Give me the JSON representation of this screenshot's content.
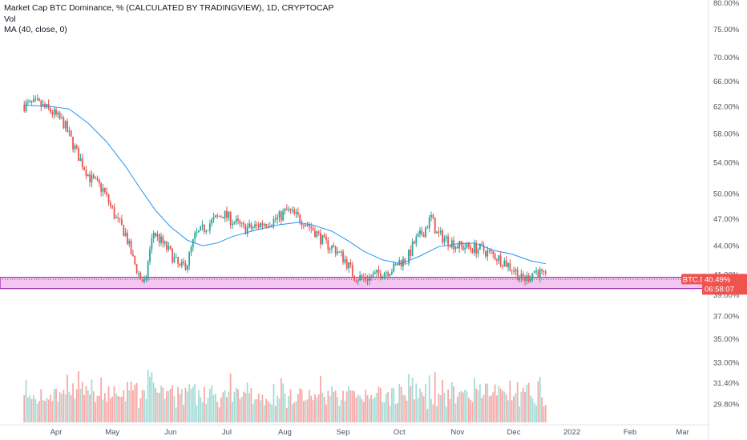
{
  "legend": {
    "title": "Market Cap BTC Dominance, % (CALCULATED BY TRADINGVIEW), 1D, CRYPTOCAP",
    "vol_label": "Vol",
    "ma_label": "MA (40, close, 0)"
  },
  "symbol_tag": "BTC.D",
  "last_price": "40.49%",
  "countdown": "06:58:07",
  "colors": {
    "up": "#26a69a",
    "down": "#ef5350",
    "ma": "#2196f3",
    "zone_fill": "#f3c6f0",
    "zone_border": "#9c27b0",
    "price_tag": "#ef5350",
    "volume_up": "#a6dcd6",
    "volume_down": "#f7a9a7"
  },
  "chart_data": {
    "type": "candlestick",
    "y_scale": "log",
    "price_axis_ticks": [
      "80.00%",
      "75.00%",
      "70.00%",
      "66.00%",
      "62.00%",
      "58.00%",
      "54.00%",
      "50.00%",
      "47.00%",
      "44.00%",
      "41.00%",
      "39.00%",
      "37.00%",
      "35.00%",
      "33.00%",
      "31.40%",
      "29.80%"
    ],
    "time_axis_ticks": [
      "Apr",
      "May",
      "Jun",
      "Jul",
      "Aug",
      "Sep",
      "Oct",
      "Nov",
      "Dec",
      "2022",
      "Feb",
      "Mar"
    ],
    "price_points": [
      [
        "2021-03-15",
        62.2
      ],
      [
        "2021-03-22",
        62.4
      ],
      [
        "2021-03-29",
        61.3
      ],
      [
        "2021-04-05",
        59.5
      ],
      [
        "2021-04-12",
        55.3
      ],
      [
        "2021-04-19",
        52.0
      ],
      [
        "2021-04-26",
        50.5
      ],
      [
        "2021-05-03",
        47.0
      ],
      [
        "2021-05-08",
        45.3
      ],
      [
        "2021-05-12",
        42.5
      ],
      [
        "2021-05-16",
        40.6
      ],
      [
        "2021-05-19",
        40.0
      ],
      [
        "2021-05-20",
        42.5
      ],
      [
        "2021-05-23",
        45.5
      ],
      [
        "2021-05-26",
        44.7
      ],
      [
        "2021-06-01",
        43.2
      ],
      [
        "2021-06-06",
        41.6
      ],
      [
        "2021-06-10",
        42.2
      ],
      [
        "2021-06-14",
        45.0
      ],
      [
        "2021-06-22",
        46.5
      ],
      [
        "2021-06-29",
        47.6
      ],
      [
        "2021-07-04",
        46.8
      ],
      [
        "2021-07-10",
        45.9
      ],
      [
        "2021-07-15",
        46.0
      ],
      [
        "2021-07-20",
        46.5
      ],
      [
        "2021-07-28",
        47.0
      ],
      [
        "2021-08-02",
        48.0
      ],
      [
        "2021-08-07",
        47.3
      ],
      [
        "2021-08-12",
        46.6
      ],
      [
        "2021-08-17",
        45.6
      ],
      [
        "2021-08-22",
        44.3
      ],
      [
        "2021-08-28",
        43.6
      ],
      [
        "2021-09-02",
        42.5
      ],
      [
        "2021-09-07",
        40.8
      ],
      [
        "2021-09-12",
        40.6
      ],
      [
        "2021-09-17",
        40.8
      ],
      [
        "2021-09-22",
        41.2
      ],
      [
        "2021-09-28",
        41.6
      ],
      [
        "2021-10-01",
        42.3
      ],
      [
        "2021-10-05",
        42.5
      ],
      [
        "2021-10-09",
        44.3
      ],
      [
        "2021-10-14",
        45.6
      ],
      [
        "2021-10-18",
        47.2
      ],
      [
        "2021-10-21",
        45.3
      ],
      [
        "2021-10-27",
        44.6
      ],
      [
        "2021-11-01",
        44.0
      ],
      [
        "2021-11-08",
        43.8
      ],
      [
        "2021-11-14",
        43.6
      ],
      [
        "2021-11-20",
        43.0
      ],
      [
        "2021-11-26",
        42.3
      ],
      [
        "2021-12-02",
        41.3
      ],
      [
        "2021-12-05",
        40.5
      ],
      [
        "2021-12-08",
        40.6
      ],
      [
        "2021-12-12",
        41.4
      ],
      [
        "2021-12-15",
        41.1
      ],
      [
        "2021-12-18",
        40.49
      ]
    ],
    "ma_points": [
      [
        "2021-03-15",
        62.2
      ],
      [
        "2021-03-29",
        62.0
      ],
      [
        "2021-04-08",
        61.6
      ],
      [
        "2021-04-18",
        59.5
      ],
      [
        "2021-04-28",
        56.8
      ],
      [
        "2021-05-08",
        53.5
      ],
      [
        "2021-05-16",
        50.6
      ],
      [
        "2021-05-24",
        48.0
      ],
      [
        "2021-06-01",
        46.1
      ],
      [
        "2021-06-10",
        44.6
      ],
      [
        "2021-06-18",
        44.0
      ],
      [
        "2021-06-26",
        44.3
      ],
      [
        "2021-07-04",
        45.0
      ],
      [
        "2021-07-16",
        45.7
      ],
      [
        "2021-07-28",
        46.3
      ],
      [
        "2021-08-08",
        46.6
      ],
      [
        "2021-08-16",
        46.3
      ],
      [
        "2021-08-26",
        45.6
      ],
      [
        "2021-09-04",
        44.5
      ],
      [
        "2021-09-12",
        43.4
      ],
      [
        "2021-09-22",
        42.5
      ],
      [
        "2021-10-02",
        42.1
      ],
      [
        "2021-10-12",
        42.9
      ],
      [
        "2021-10-22",
        43.9
      ],
      [
        "2021-11-01",
        44.2
      ],
      [
        "2021-11-10",
        44.3
      ],
      [
        "2021-11-20",
        43.5
      ],
      [
        "2021-11-30",
        43.1
      ],
      [
        "2021-12-10",
        42.4
      ],
      [
        "2021-12-18",
        42.1
      ]
    ],
    "support_zone": [
      39.6,
      40.7
    ],
    "last_value": 40.49
  }
}
